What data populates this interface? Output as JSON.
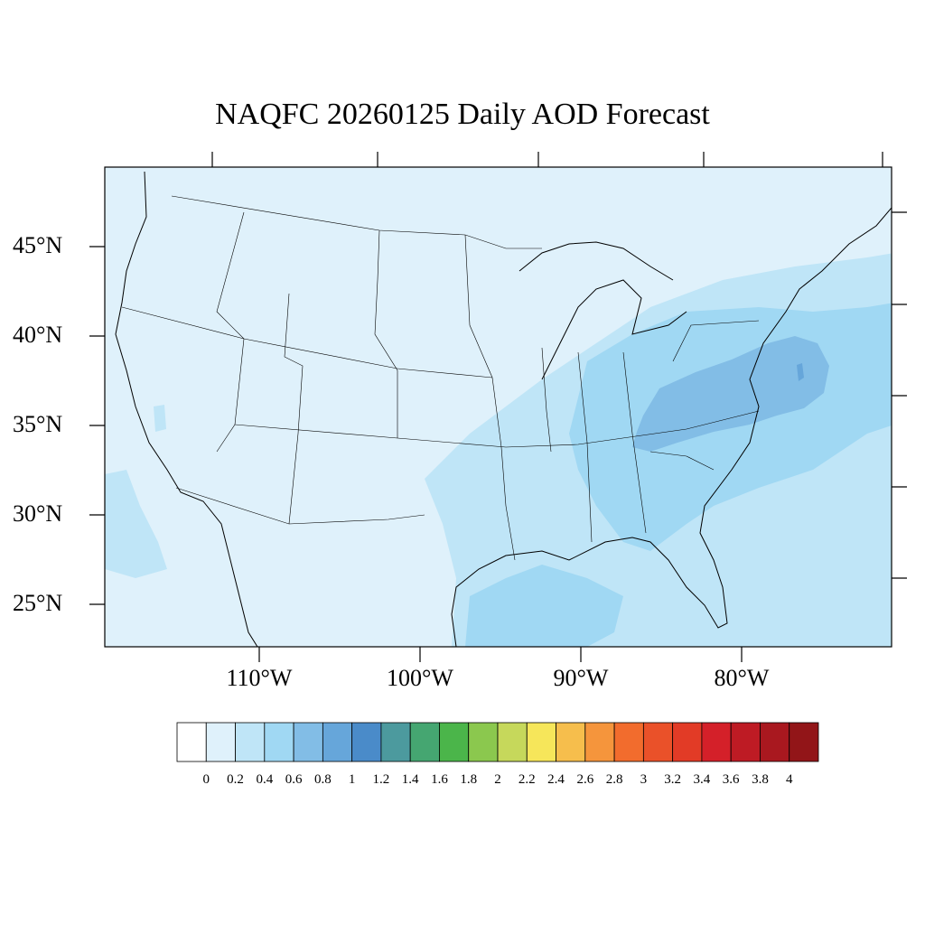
{
  "title": "NAQFC 20260125 Daily AOD Forecast",
  "axes": {
    "lat_labels": [
      "45°N",
      "40°N",
      "35°N",
      "30°N",
      "25°N"
    ],
    "lon_labels": [
      "110°W",
      "100°W",
      "90°W",
      "80°W"
    ]
  },
  "colorbar": {
    "labels": [
      "0",
      "0.2",
      "0.4",
      "0.6",
      "0.8",
      "1",
      "1.2",
      "1.4",
      "1.6",
      "1.8",
      "2",
      "2.2",
      "2.4",
      "2.6",
      "2.8",
      "3",
      "3.2",
      "3.4",
      "3.6",
      "3.8",
      "4"
    ],
    "colors": [
      "#ffffff",
      "#dff1fb",
      "#bfe5f7",
      "#a0d8f3",
      "#82bde6",
      "#66a6da",
      "#4a8bc9",
      "#4c9a9e",
      "#45a671",
      "#4bb54a",
      "#8bc84e",
      "#c6d85b",
      "#f6e65a",
      "#f6be4c",
      "#f5953c",
      "#f26c2d",
      "#ea5129",
      "#e23b26",
      "#d42029",
      "#be1b24",
      "#a9181f",
      "#921518"
    ]
  },
  "map": {
    "region": "Contiguous United States",
    "background_level_color": "#dff1fb",
    "plume_colors": {
      "level_0_4": "#bfe5f7",
      "level_0_6": "#a0d8f3",
      "level_0_8": "#82bde6"
    }
  }
}
